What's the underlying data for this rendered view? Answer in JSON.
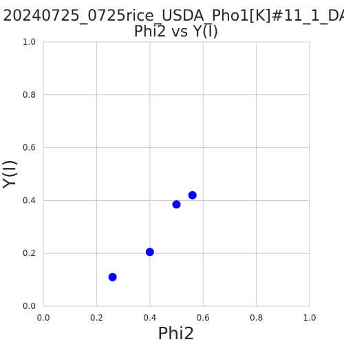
{
  "chart_data": {
    "type": "scatter",
    "title_line1": "20240725_0725rice_USDA_Pho1[K]#11_1_DA",
    "title_line2": "Phi2 vs Y(I)",
    "xlabel": "Phi2",
    "ylabel": "Y(I)",
    "xlim": [
      0.0,
      1.0
    ],
    "ylim": [
      0.0,
      1.0
    ],
    "xticks": [
      "0.0",
      "0.2",
      "0.4",
      "0.6",
      "0.8",
      "1.0"
    ],
    "yticks": [
      "0.0",
      "0.2",
      "0.4",
      "0.6",
      "0.8",
      "1.0"
    ],
    "grid": true,
    "marker_color": "#0000ff",
    "points": [
      {
        "x": 0.26,
        "y": 0.11
      },
      {
        "x": 0.4,
        "y": 0.205
      },
      {
        "x": 0.5,
        "y": 0.385
      },
      {
        "x": 0.56,
        "y": 0.42
      }
    ]
  }
}
